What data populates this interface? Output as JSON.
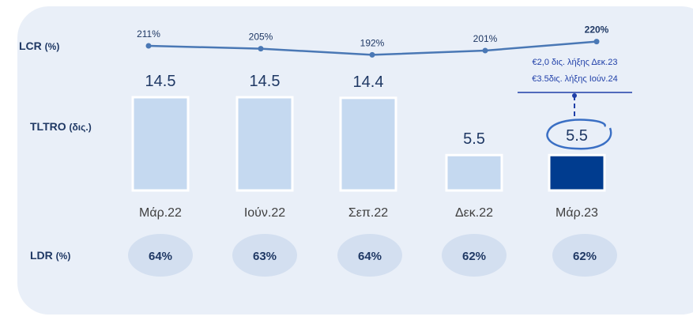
{
  "row_labels": {
    "lcr": {
      "name": "LCR",
      "unit": "(%)"
    },
    "tltro": {
      "name": "TLTRO",
      "unit": "(δις.)"
    },
    "ldr": {
      "name": "LDR",
      "unit": "(%)"
    }
  },
  "annotation": {
    "line1": "€2,0 δις. λήξης Δεκ.23",
    "line2": "€3.5δις. λήξης Ιούν.24"
  },
  "colors": {
    "panel": "#e9eff8",
    "bar_light": "#c5d9f0",
    "bar_highlight": "#003c8f",
    "line": "#4a78b5",
    "ellipse": "#d3dff0",
    "text_dark": "#1f3864"
  },
  "chart_data": {
    "type": "bar",
    "categories": [
      "Μάρ.22",
      "Ιούν.22",
      "Σεπ.22",
      "Δεκ.22",
      "Μάρ.23"
    ],
    "series": [
      {
        "name": "TLTRO",
        "values": [
          14.5,
          14.5,
          14.4,
          5.5,
          5.5
        ],
        "labels": [
          "14.5",
          "14.5",
          "14.4",
          "5.5",
          "5.5"
        ],
        "highlight_index": 4
      },
      {
        "name": "LCR",
        "type": "line",
        "values": [
          211,
          205,
          192,
          201,
          220
        ],
        "labels": [
          "211%",
          "205%",
          "192%",
          "201%",
          "220%"
        ]
      },
      {
        "name": "LDR",
        "values": [
          64,
          63,
          64,
          62,
          62
        ],
        "labels": [
          "64%",
          "63%",
          "64%",
          "62%",
          "62%"
        ]
      }
    ]
  }
}
